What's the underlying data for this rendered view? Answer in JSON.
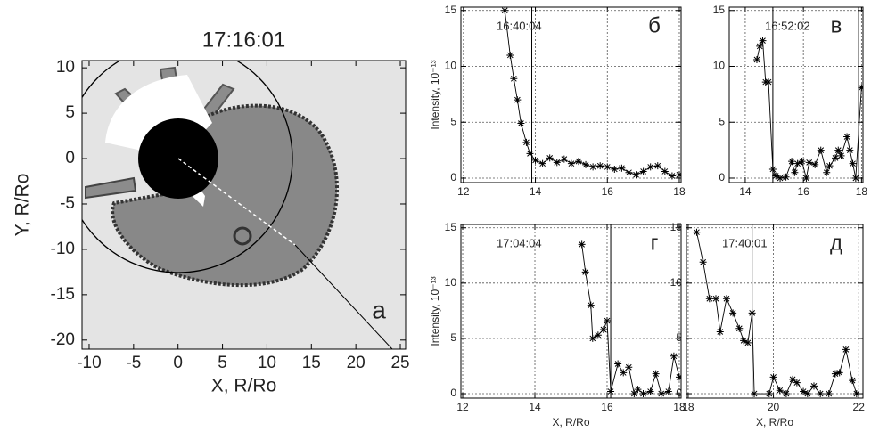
{
  "chart_data": [
    {
      "type": "image",
      "title": "17:16:01",
      "xlabel": "X, R/Ro",
      "ylabel": "Y, R/Ro",
      "annotations": [
        "а"
      ],
      "xlim": [
        -10.8,
        25.6
      ],
      "ylim": [
        -21,
        10.8
      ],
      "xticks": [
        -10,
        -5,
        0,
        5,
        10,
        15,
        20,
        25
      ],
      "yticks": [
        10,
        5,
        0,
        -5,
        -10,
        -15,
        -20
      ]
    },
    {
      "type": "line",
      "annotations": [
        "16:40:04",
        "б"
      ],
      "ylabel": "Intensity, 10⁻¹³",
      "xlim": [
        11.93,
        18.05
      ],
      "ylim": [
        -0.4,
        15.3
      ],
      "xticks": [
        12,
        14,
        16,
        18
      ],
      "yticks": [
        0,
        5,
        10,
        15
      ],
      "grid": true,
      "color": "#000000",
      "marker": "asterisk",
      "vlines": [
        13.9
      ],
      "x": [
        13.15,
        13.3,
        13.4,
        13.5,
        13.6,
        13.75,
        13.85,
        14.0,
        14.2,
        14.4,
        14.6,
        14.8,
        15.0,
        15.2,
        15.4,
        15.6,
        15.8,
        16.0,
        16.2,
        16.4,
        16.6,
        16.8,
        17.0,
        17.2,
        17.4,
        17.6,
        17.8,
        18.0
      ],
      "values": [
        15,
        11,
        8.9,
        7,
        4.9,
        3.2,
        2.2,
        1.6,
        1.3,
        1.8,
        1.4,
        1.7,
        1.3,
        1.5,
        1.2,
        1.0,
        1.1,
        1.0,
        0.8,
        0.9,
        0.5,
        0.3,
        0.6,
        1.0,
        1.1,
        0.6,
        0.2,
        0.3
      ]
    },
    {
      "type": "line",
      "annotations": [
        "16:52:02",
        "в"
      ],
      "xlim": [
        13.45,
        18.05
      ],
      "ylim": [
        -0.4,
        15.3
      ],
      "xticks": [
        14,
        16,
        18
      ],
      "yticks": [
        0,
        5,
        10,
        15
      ],
      "grid": true,
      "color": "#000000",
      "marker": "asterisk",
      "vlines": [
        14.95,
        17.9
      ],
      "x": [
        14.4,
        14.5,
        14.6,
        14.7,
        14.8,
        14.95,
        15.05,
        15.2,
        15.4,
        15.6,
        15.7,
        15.8,
        15.95,
        16.1,
        16.2,
        16.4,
        16.6,
        16.8,
        16.9,
        17.1,
        17.2,
        17.3,
        17.5,
        17.6,
        17.7,
        17.8,
        18.0
      ],
      "values": [
        10.6,
        11.8,
        12.3,
        8.6,
        8.6,
        0.8,
        0.2,
        0,
        0.1,
        1.5,
        0.5,
        1.3,
        1.5,
        0,
        1.4,
        1.2,
        2.5,
        0.5,
        1.1,
        1.8,
        2.5,
        2.0,
        3.7,
        2.5,
        1.3,
        0,
        8.1
      ]
    },
    {
      "type": "line",
      "annotations": [
        "17:04:04",
        "г"
      ],
      "ylabel": "Intensity, 10⁻¹³",
      "xlabel": "X, R/Ro",
      "xlim": [
        11.95,
        18.05
      ],
      "ylim": [
        -0.4,
        15.3
      ],
      "xticks": [
        12,
        14,
        16,
        18
      ],
      "yticks": [
        0,
        5,
        10,
        15
      ],
      "grid": true,
      "color": "#000000",
      "marker": "asterisk",
      "vlines": [
        16.1
      ],
      "x": [
        15.3,
        15.4,
        15.55,
        15.6,
        15.75,
        15.9,
        16.0,
        16.1,
        16.3,
        16.45,
        16.6,
        16.75,
        16.85,
        17.0,
        17.2,
        17.35,
        17.5,
        17.7,
        17.85,
        18.0
      ],
      "values": [
        13.5,
        11,
        8,
        5,
        5.3,
        5.8,
        6.6,
        0.2,
        2.7,
        1.9,
        2.4,
        0,
        0.4,
        0,
        0.2,
        1.8,
        0,
        0.2,
        3.4,
        1.5
      ]
    },
    {
      "type": "line",
      "annotations": [
        "17:40:01",
        "д"
      ],
      "xlabel": "X, R/Ro",
      "xlim": [
        17.96,
        22.1
      ],
      "ylim": [
        -0.4,
        15.3
      ],
      "xticks": [
        18,
        20,
        22
      ],
      "yticks": [
        0,
        5,
        10,
        15
      ],
      "grid": true,
      "color": "#000000",
      "marker": "asterisk",
      "vlines": [
        19.5
      ],
      "x": [
        18.2,
        18.35,
        18.5,
        18.65,
        18.75,
        18.9,
        19.05,
        19.2,
        19.3,
        19.4,
        19.5,
        19.55,
        19.9,
        20.0,
        20.15,
        20.3,
        20.45,
        20.55,
        20.7,
        20.8,
        20.95,
        21.1,
        21.3,
        21.45,
        21.55,
        21.7,
        21.85,
        21.95
      ],
      "values": [
        14.6,
        11.9,
        8.6,
        8.6,
        5.6,
        8.6,
        7.3,
        5.9,
        4.8,
        4.6,
        7.3,
        0,
        0,
        1.5,
        0.3,
        0,
        1.3,
        1.0,
        0.2,
        0,
        0.7,
        0,
        0,
        1.8,
        1.9,
        4.0,
        1.2,
        0
      ]
    }
  ]
}
